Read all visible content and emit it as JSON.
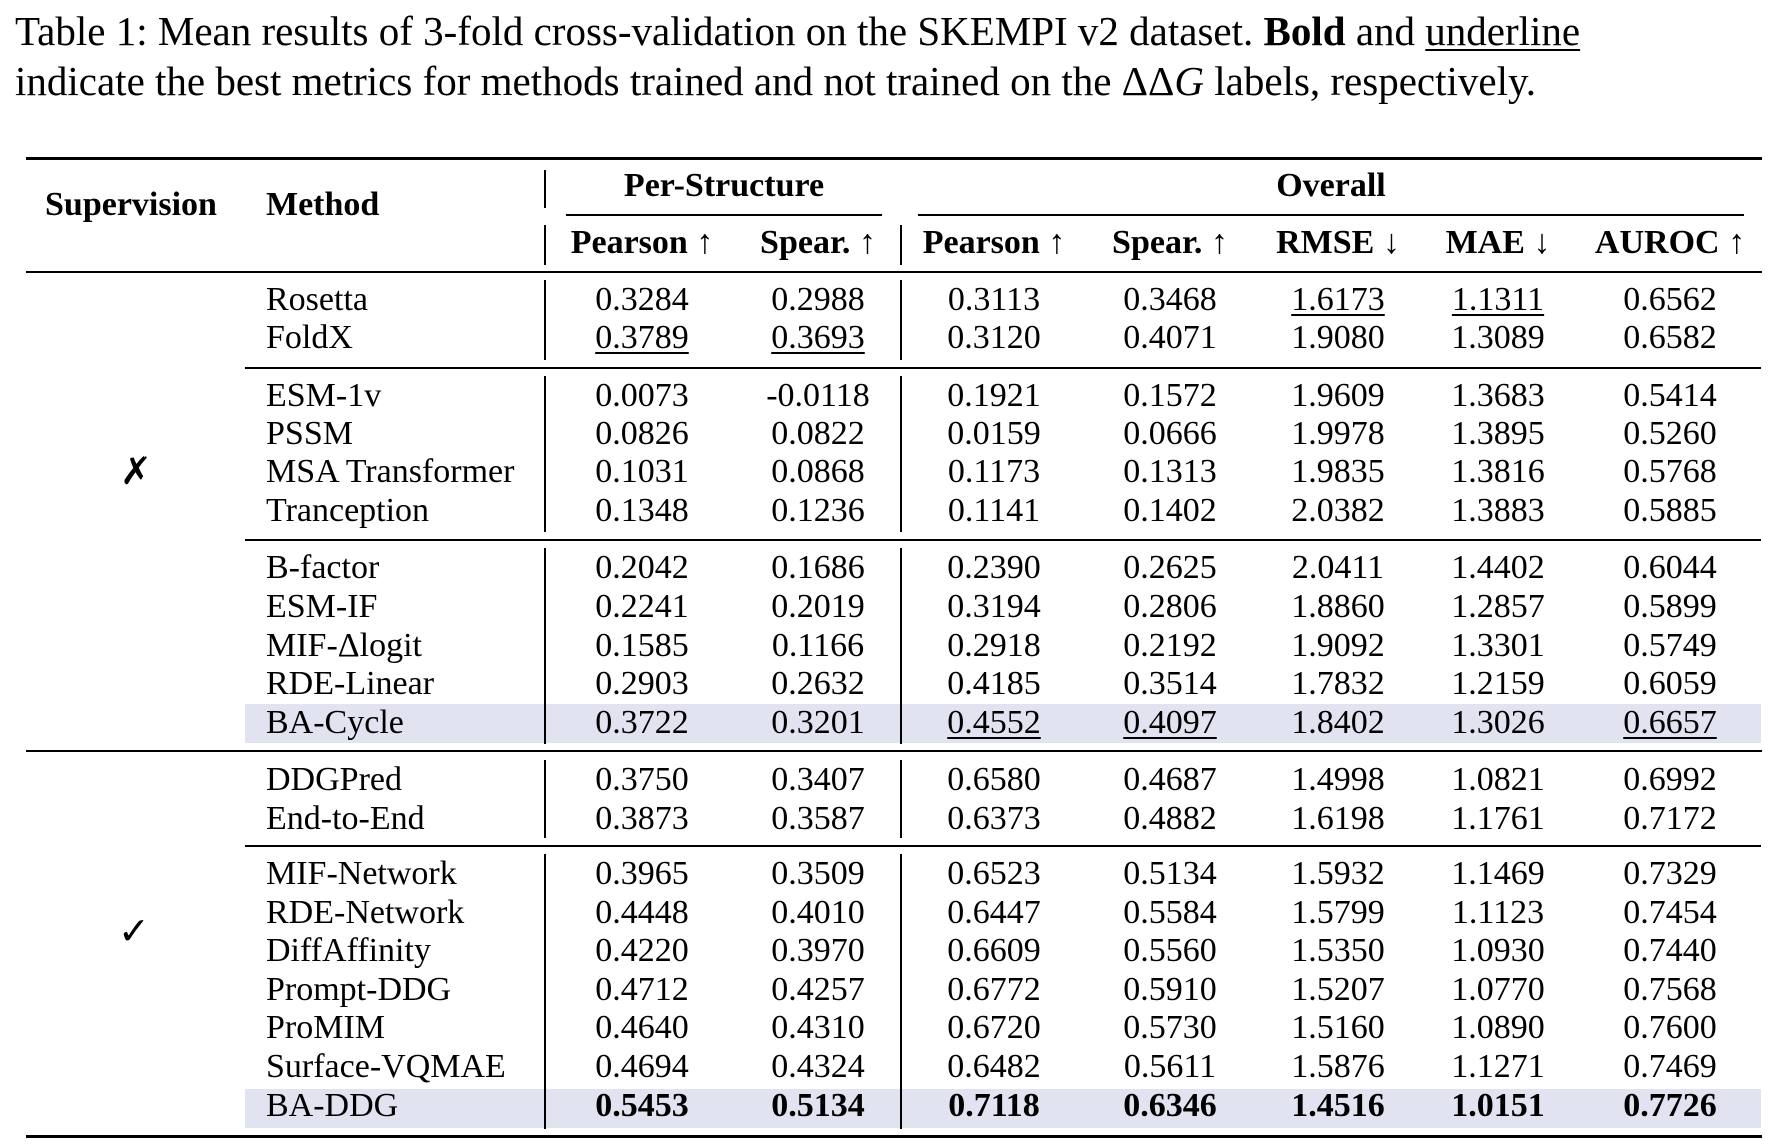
{
  "caption": {
    "label": "Table 1:",
    "text_a": " Mean results of 3-fold cross-validation on the SKEMPI v2 dataset. ",
    "bold_word": "Bold",
    "and_word": " and ",
    "underline_word": "underline",
    "text_b": "indicate the best metrics for methods trained and not trained on the ",
    "ddg_symbol": "ΔΔ",
    "ddg_var": "G",
    "text_c": " labels, respectively."
  },
  "header": {
    "supervision": "Supervision",
    "method": "Method",
    "per_structure": "Per-Structure",
    "overall": "Overall",
    "columns": [
      "Pearson ↑",
      "Spear. ↑",
      "Pearson ↑",
      "Spear. ↑",
      "RMSE ↓",
      "MAE ↓",
      "AUROC ↑"
    ]
  },
  "supervision_marks": {
    "unsupervised": "✗",
    "supervised": "✓"
  },
  "rows": [
    {
      "method": "Rosetta",
      "values": [
        "0.3284",
        "0.2988",
        "0.3113",
        "0.3468",
        "1.6173",
        "1.1311",
        "0.6562"
      ]
    },
    {
      "method": "FoldX",
      "values": [
        "0.3789",
        "0.3693",
        "0.3120",
        "0.4071",
        "1.9080",
        "1.3089",
        "0.6582"
      ]
    },
    {
      "method": "ESM-1v",
      "values": [
        "0.0073",
        "-0.0118",
        "0.1921",
        "0.1572",
        "1.9609",
        "1.3683",
        "0.5414"
      ]
    },
    {
      "method": "PSSM",
      "values": [
        "0.0826",
        "0.0822",
        "0.0159",
        "0.0666",
        "1.9978",
        "1.3895",
        "0.5260"
      ]
    },
    {
      "method": "MSA Transformer",
      "values": [
        "0.1031",
        "0.0868",
        "0.1173",
        "0.1313",
        "1.9835",
        "1.3816",
        "0.5768"
      ]
    },
    {
      "method": "Tranception",
      "values": [
        "0.1348",
        "0.1236",
        "0.1141",
        "0.1402",
        "2.0382",
        "1.3883",
        "0.5885"
      ]
    },
    {
      "method": "B-factor",
      "values": [
        "0.2042",
        "0.1686",
        "0.2390",
        "0.2625",
        "2.0411",
        "1.4402",
        "0.6044"
      ]
    },
    {
      "method": "ESM-IF",
      "values": [
        "0.2241",
        "0.2019",
        "0.3194",
        "0.2806",
        "1.8860",
        "1.2857",
        "0.5899"
      ]
    },
    {
      "method": "MIF-Δlogit",
      "values": [
        "0.1585",
        "0.1166",
        "0.2918",
        "0.2192",
        "1.9092",
        "1.3301",
        "0.5749"
      ]
    },
    {
      "method": "RDE-Linear",
      "values": [
        "0.2903",
        "0.2632",
        "0.4185",
        "0.3514",
        "1.7832",
        "1.2159",
        "0.6059"
      ]
    },
    {
      "method": "BA-Cycle",
      "values": [
        "0.3722",
        "0.3201",
        "0.4552",
        "0.4097",
        "1.8402",
        "1.3026",
        "0.6657"
      ]
    },
    {
      "method": "DDGPred",
      "values": [
        "0.3750",
        "0.3407",
        "0.6580",
        "0.4687",
        "1.4998",
        "1.0821",
        "0.6992"
      ]
    },
    {
      "method": "End-to-End",
      "values": [
        "0.3873",
        "0.3587",
        "0.6373",
        "0.4882",
        "1.6198",
        "1.1761",
        "0.7172"
      ]
    },
    {
      "method": "MIF-Network",
      "values": [
        "0.3965",
        "0.3509",
        "0.6523",
        "0.5134",
        "1.5932",
        "1.1469",
        "0.7329"
      ]
    },
    {
      "method": "RDE-Network",
      "values": [
        "0.4448",
        "0.4010",
        "0.6447",
        "0.5584",
        "1.5799",
        "1.1123",
        "0.7454"
      ]
    },
    {
      "method": "DiffAffinity",
      "values": [
        "0.4220",
        "0.3970",
        "0.6609",
        "0.5560",
        "1.5350",
        "1.0930",
        "0.7440"
      ]
    },
    {
      "method": "Prompt-DDG",
      "values": [
        "0.4712",
        "0.4257",
        "0.6772",
        "0.5910",
        "1.5207",
        "1.0770",
        "0.7568"
      ]
    },
    {
      "method": "ProMIM",
      "values": [
        "0.4640",
        "0.4310",
        "0.6720",
        "0.5730",
        "1.5160",
        "1.0890",
        "0.7600"
      ]
    },
    {
      "method": "Surface-VQMAE",
      "values": [
        "0.4694",
        "0.4324",
        "0.6482",
        "0.5611",
        "1.5876",
        "1.1271",
        "0.7469"
      ]
    },
    {
      "method": "BA-DDG",
      "values": [
        "0.5453",
        "0.5134",
        "0.7118",
        "0.6346",
        "1.4516",
        "1.0151",
        "0.7726"
      ]
    }
  ],
  "underlined_cells": [
    [
      0,
      4
    ],
    [
      0,
      5
    ],
    [
      1,
      0
    ],
    [
      1,
      1
    ],
    [
      10,
      2
    ],
    [
      10,
      3
    ],
    [
      10,
      6
    ]
  ],
  "bold_rows": [
    19
  ],
  "highlighted_rows": [
    10,
    19
  ],
  "colors": {
    "highlight": "#e2e3f0"
  }
}
